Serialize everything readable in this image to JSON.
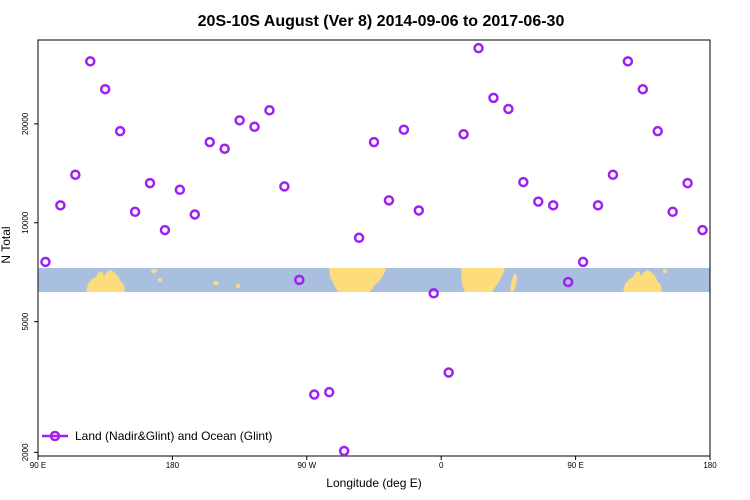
{
  "chart_data": {
    "type": "scatter",
    "title": "20S-10S August (Ver 8)   2014-09-06 to 2017-06-30",
    "xlabel": "Longitude (deg E)",
    "ylabel": "N Total",
    "y_scale": "log",
    "xlim": [
      90,
      540
    ],
    "ylim": [
      1950,
      36000
    ],
    "x_ticks": [
      {
        "value": 90,
        "label": "90 E"
      },
      {
        "value": 180,
        "label": "180"
      },
      {
        "value": 270,
        "label": "90 W"
      },
      {
        "value": 360,
        "label": "0"
      },
      {
        "value": 450,
        "label": "90 E"
      },
      {
        "value": 540,
        "label": "180"
      }
    ],
    "y_ticks": [
      {
        "value": 2000,
        "label": "2000"
      },
      {
        "value": 5000,
        "label": "5000"
      },
      {
        "value": 10000,
        "label": "10000"
      },
      {
        "value": 20000,
        "label": "20000"
      }
    ],
    "series": [
      {
        "name": "Land (Nadir&Glint) and Ocean (Glint)",
        "color": "#a020f0",
        "marker": "open-circle",
        "x": [
          95,
          105,
          115,
          125,
          135,
          145,
          155,
          165,
          175,
          185,
          195,
          205,
          215,
          225,
          235,
          245,
          255,
          265,
          275,
          285,
          295,
          305,
          315,
          325,
          335,
          345,
          355,
          365,
          375,
          385,
          395,
          405,
          415,
          425,
          435,
          445,
          455,
          465,
          475,
          485,
          495,
          505,
          515,
          525,
          535
        ],
        "y": [
          7600,
          11300,
          14000,
          31000,
          25500,
          19000,
          10800,
          13200,
          9500,
          12600,
          10600,
          17600,
          16800,
          20500,
          19600,
          22000,
          12900,
          6700,
          3000,
          3050,
          2020,
          9000,
          17600,
          11700,
          19200,
          10900,
          6100,
          3500,
          18600,
          34000,
          24000,
          22200,
          13300,
          11600,
          11300,
          6600,
          7600,
          11300,
          14000,
          31000,
          25500,
          19000,
          10800,
          13200,
          9500
        ]
      }
    ],
    "legend": {
      "position": "bottom-left"
    },
    "background_map": {
      "band": "20S-10S",
      "ocean_color": "#a9bfdf",
      "land_color": "#fddc7b"
    },
    "grid": false
  }
}
